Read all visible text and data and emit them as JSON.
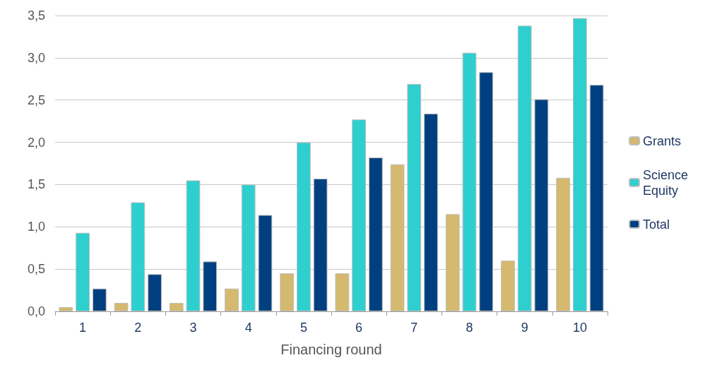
{
  "chart_data": {
    "type": "bar",
    "xlabel": "Financing round",
    "categories": [
      "1",
      "2",
      "3",
      "4",
      "5",
      "6",
      "7",
      "8",
      "9",
      "10"
    ],
    "series": [
      {
        "name": "Grants",
        "color": "#d4b96e",
        "values": [
          0.05,
          0.1,
          0.1,
          0.27,
          0.45,
          0.45,
          1.74,
          1.15,
          0.6,
          1.58
        ]
      },
      {
        "name": "Science Equity",
        "color": "#2ecfcf",
        "values": [
          0.93,
          1.29,
          1.55,
          1.5,
          2.0,
          2.27,
          2.69,
          3.06,
          3.38,
          3.47
        ]
      },
      {
        "name": "Total",
        "color": "#004080",
        "values": [
          0.27,
          0.44,
          0.59,
          1.14,
          1.57,
          1.82,
          2.34,
          2.83,
          2.51,
          2.68
        ]
      }
    ],
    "ylim": [
      0,
      3.5
    ],
    "yticks": [
      {
        "value": 0,
        "label": "0,0"
      },
      {
        "value": 0.5,
        "label": "0,5"
      },
      {
        "value": 1,
        "label": "1,0"
      },
      {
        "value": 1.5,
        "label": "1,5"
      },
      {
        "value": 2,
        "label": "2,0"
      },
      {
        "value": 2.5,
        "label": "2,5"
      },
      {
        "value": 3,
        "label": "3,0"
      },
      {
        "value": 3.5,
        "label": "3,5"
      }
    ],
    "grid": "y",
    "legend": "right"
  }
}
